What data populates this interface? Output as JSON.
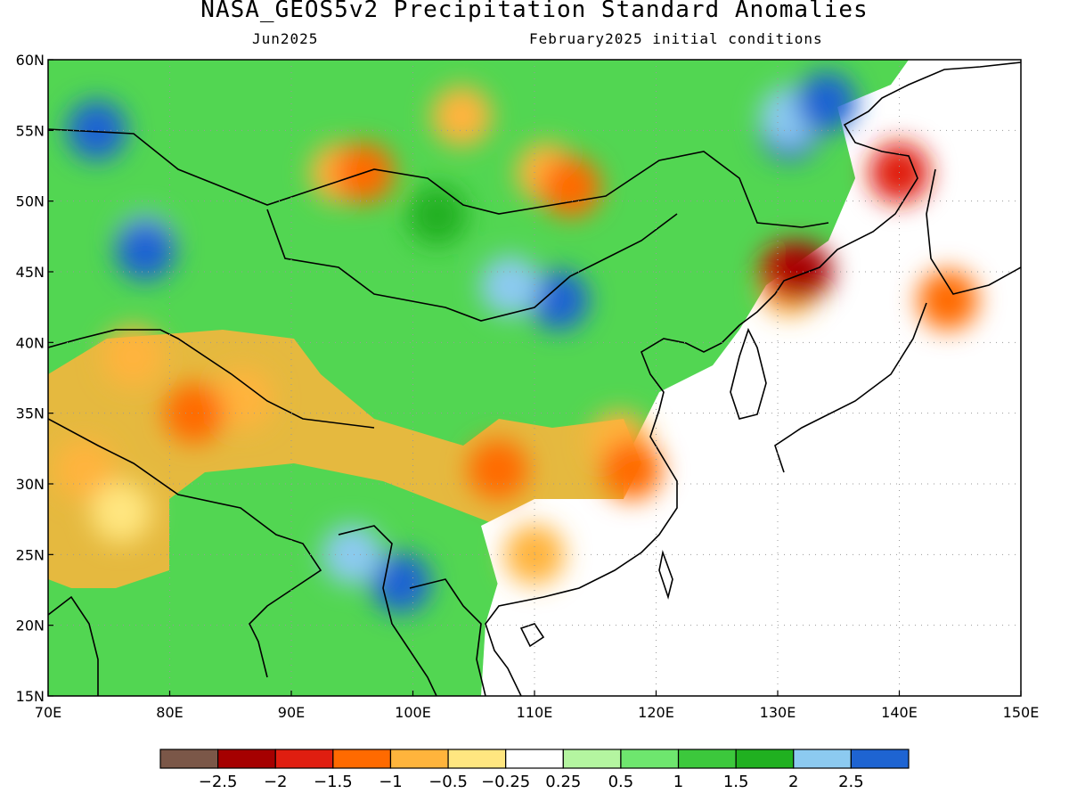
{
  "title": "NASA_GEOS5v2 Precipitation Standard Anomalies",
  "subtitle_left": "Jun2025",
  "subtitle_right": "February2025 initial conditions",
  "map": {
    "lon_range": [
      70,
      150
    ],
    "lat_range": [
      15,
      60
    ],
    "lon_ticks": [
      "70E",
      "80E",
      "90E",
      "100E",
      "110E",
      "120E",
      "130E",
      "140E",
      "150E"
    ],
    "lat_ticks": [
      "15N",
      "20N",
      "25N",
      "30N",
      "35N",
      "40N",
      "45N",
      "50N",
      "55N",
      "60N"
    ],
    "grid": "dotted",
    "land_fill_default": "#ffffff"
  },
  "colorbar": {
    "colors": [
      "#7b5748",
      "#a50000",
      "#e01e10",
      "#ff6a00",
      "#ffb43c",
      "#ffe680",
      "#ffffff",
      "#b4f5a0",
      "#6ee66e",
      "#3cc83c",
      "#20b020",
      "#8ccaf0",
      "#1e64d2"
    ],
    "labels": [
      "-2.5",
      "-2",
      "-1.5",
      "-1",
      "-0.5",
      "-0.25",
      "0.25",
      "0.5",
      "1",
      "1.5",
      "2",
      "2.5"
    ]
  },
  "anomaly_regions": [
    {
      "level": 10,
      "lon": 102,
      "lat": 49
    },
    {
      "level": 12,
      "lon": 112,
      "lat": 43
    },
    {
      "level": 11,
      "lon": 108,
      "lat": 44
    },
    {
      "level": 11,
      "lon": 78,
      "lat": 47
    },
    {
      "level": 12,
      "lon": 78,
      "lat": 46.5
    },
    {
      "level": 11,
      "lon": 74,
      "lat": 55
    },
    {
      "level": 12,
      "lon": 74,
      "lat": 55
    },
    {
      "level": 12,
      "lon": 131,
      "lat": 55
    },
    {
      "level": 11,
      "lon": 131,
      "lat": 56
    },
    {
      "level": 12,
      "lon": 134,
      "lat": 57
    },
    {
      "level": 12,
      "lon": 99,
      "lat": 23
    },
    {
      "level": 11,
      "lon": 95,
      "lat": 25
    },
    {
      "level": 4,
      "lon": 94,
      "lat": 52
    },
    {
      "level": 3,
      "lon": 96,
      "lat": 52
    },
    {
      "level": 4,
      "lon": 111,
      "lat": 52
    },
    {
      "level": 3,
      "lon": 113,
      "lat": 51
    },
    {
      "level": 4,
      "lon": 104,
      "lat": 56
    },
    {
      "level": 4,
      "lon": 86,
      "lat": 36
    },
    {
      "level": 3,
      "lon": 82,
      "lat": 35
    },
    {
      "level": 4,
      "lon": 77,
      "lat": 39
    },
    {
      "level": 4,
      "lon": 73,
      "lat": 31
    },
    {
      "level": 5,
      "lon": 76,
      "lat": 28
    },
    {
      "level": 4,
      "lon": 110,
      "lat": 25
    },
    {
      "level": 4,
      "lon": 117,
      "lat": 33
    },
    {
      "level": 3,
      "lon": 118,
      "lat": 31
    },
    {
      "level": 3,
      "lon": 107,
      "lat": 31
    },
    {
      "level": 4,
      "lon": 131,
      "lat": 44
    },
    {
      "level": 2,
      "lon": 131,
      "lat": 45
    },
    {
      "level": 1,
      "lon": 132,
      "lat": 45
    },
    {
      "level": 2,
      "lon": 140,
      "lat": 52
    },
    {
      "level": 3,
      "lon": 144,
      "lat": 43
    }
  ]
}
